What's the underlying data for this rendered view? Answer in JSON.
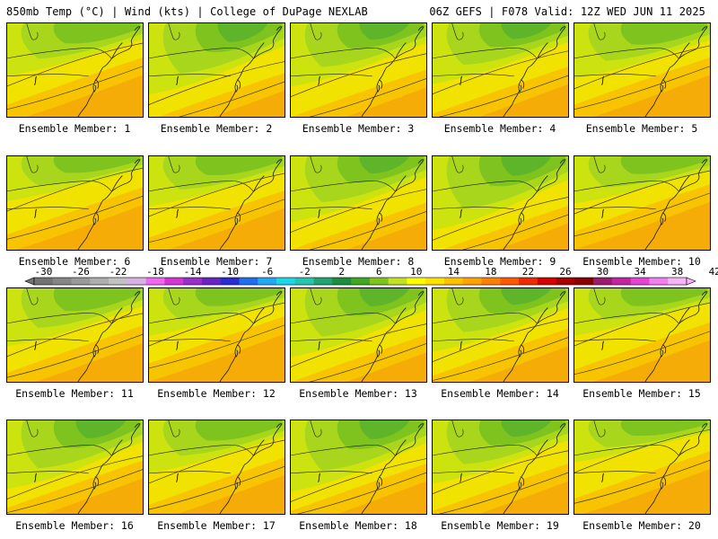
{
  "header": {
    "left": "850mb Temp (°C) | Wind (kts) | College of DuPage NEXLAB",
    "right": "06Z GEFS | F078 Valid: 12Z WED JUN 11 2025"
  },
  "members": [
    {
      "label": "Ensemble Member: 1",
      "green": 0.5,
      "warm": 0.6
    },
    {
      "label": "Ensemble Member: 2",
      "green": 0.85,
      "warm": 0.35
    },
    {
      "label": "Ensemble Member: 3",
      "green": 0.7,
      "warm": 0.4
    },
    {
      "label": "Ensemble Member: 4",
      "green": 0.65,
      "warm": 0.45
    },
    {
      "label": "Ensemble Member: 5",
      "green": 0.55,
      "warm": 0.6
    },
    {
      "label": "Ensemble Member: 6",
      "green": 0.35,
      "warm": 0.65
    },
    {
      "label": "Ensemble Member: 7",
      "green": 0.45,
      "warm": 0.6
    },
    {
      "label": "Ensemble Member: 8",
      "green": 0.75,
      "warm": 0.4
    },
    {
      "label": "Ensemble Member: 9",
      "green": 0.9,
      "warm": 0.35
    },
    {
      "label": "Ensemble Member: 10",
      "green": 0.4,
      "warm": 0.7
    },
    {
      "label": "Ensemble Member: 11",
      "green": 0.6,
      "warm": 0.55
    },
    {
      "label": "Ensemble Member: 12",
      "green": 0.4,
      "warm": 0.7
    },
    {
      "label": "Ensemble Member: 13",
      "green": 0.8,
      "warm": 0.4
    },
    {
      "label": "Ensemble Member: 14",
      "green": 0.7,
      "warm": 0.5
    },
    {
      "label": "Ensemble Member: 15",
      "green": 0.4,
      "warm": 0.6
    },
    {
      "label": "Ensemble Member: 16",
      "green": 0.8,
      "warm": 0.5
    },
    {
      "label": "Ensemble Member: 17",
      "green": 0.5,
      "warm": 0.55
    },
    {
      "label": "Ensemble Member: 18",
      "green": 0.85,
      "warm": 0.45
    },
    {
      "label": "Ensemble Member: 19",
      "green": 0.7,
      "warm": 0.45
    },
    {
      "label": "Ensemble Member: 20",
      "green": 0.3,
      "warm": 0.65
    }
  ],
  "colorbar": {
    "labels": [
      "-30",
      "-26",
      "-22",
      "-18",
      "-14",
      "-10",
      "-6",
      "-2",
      "2",
      "6",
      "10",
      "14",
      "18",
      "22",
      "26",
      "30",
      "34",
      "38",
      "42"
    ],
    "colors": [
      "#737373",
      "#868686",
      "#999999",
      "#adadad",
      "#c2c2c2",
      "#d8b0e6",
      "#f266f2",
      "#d633d6",
      "#9b2ccd",
      "#6b24c4",
      "#2b2bd1",
      "#1e6ef0",
      "#1faaf5",
      "#1ed6e8",
      "#23c7b0",
      "#21a373",
      "#1b8f3d",
      "#3fa823",
      "#7fc41a",
      "#c1e121",
      "#ffff00",
      "#ffe100",
      "#ffc000",
      "#ffa200",
      "#ff8000",
      "#ff5a00",
      "#f02a00",
      "#d40000",
      "#a80000",
      "#8b0000",
      "#9c1b6e",
      "#c424a0",
      "#e642d4",
      "#f57cf0",
      "#f8b4f8"
    ]
  },
  "map_colors": {
    "green_dark": "#5fb52a",
    "green": "#7fc31e",
    "green_light": "#a7d61d",
    "lime": "#cde30f",
    "yellow": "#f2e200",
    "gold": "#f8c400",
    "orange": "#f5ac06",
    "line": "#1a1a1a"
  }
}
